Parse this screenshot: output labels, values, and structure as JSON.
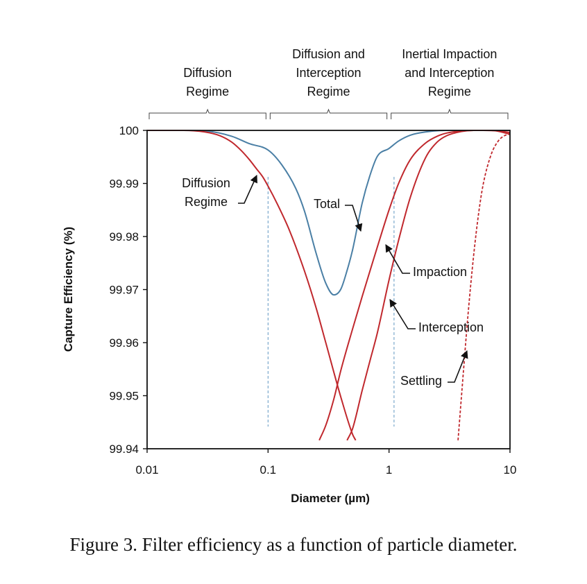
{
  "chart_data": {
    "type": "line",
    "xscale": "log",
    "xlim": [
      0.01,
      10
    ],
    "ylim": [
      99.94,
      100
    ],
    "xlabel": "Diameter (µm)",
    "ylabel": "Capture Efficiency (%)",
    "xticks": [
      "0.01",
      "0.1",
      "1",
      "10"
    ],
    "yticks": [
      "100",
      "99.99",
      "99.98",
      "99.97",
      "99.96",
      "99.95",
      "99.94"
    ],
    "grid": false,
    "regimes": [
      {
        "lines": [
          "Diffusion",
          "Regime"
        ],
        "range": [
          0.01,
          0.1
        ]
      },
      {
        "lines": [
          "Diffusion and",
          "Interception",
          "Regime"
        ],
        "range": [
          0.1,
          1
        ]
      },
      {
        "lines": [
          "Inertial Impaction",
          "and Interception",
          "Regime"
        ],
        "range": [
          1,
          10
        ]
      }
    ],
    "reference_lines": [
      0.1,
      1.1
    ],
    "series": [
      {
        "name": "Total",
        "color": "#4a7fa5",
        "style": "solid",
        "x": [
          0.01,
          0.02,
          0.03,
          0.05,
          0.07,
          0.1,
          0.13,
          0.17,
          0.2,
          0.25,
          0.3,
          0.35,
          0.4,
          0.45,
          0.5,
          0.6,
          0.7,
          0.8,
          1.0,
          1.2,
          1.5,
          2,
          3,
          5,
          10
        ],
        "y": [
          100,
          100,
          99.9999,
          99.9989,
          99.9975,
          99.9963,
          99.9935,
          99.989,
          99.9848,
          99.9768,
          99.9712,
          99.969,
          99.9701,
          99.9736,
          99.9775,
          99.9863,
          99.9917,
          99.9951,
          99.9966,
          99.998,
          99.9991,
          99.9997,
          100,
          100,
          100
        ]
      },
      {
        "name": "Diffusion",
        "color": "#c0282d",
        "style": "solid",
        "x": [
          0.01,
          0.02,
          0.03,
          0.04,
          0.05,
          0.06,
          0.07,
          0.08,
          0.09,
          0.1,
          0.12,
          0.15,
          0.2,
          0.25,
          0.3,
          0.4,
          0.5,
          0.53
        ],
        "y": [
          100,
          100,
          99.9997,
          99.999,
          99.9978,
          99.9962,
          99.9945,
          99.9928,
          99.9913,
          99.9895,
          99.986,
          99.9812,
          99.9735,
          99.9665,
          99.96,
          99.9497,
          99.9427,
          99.9416
        ]
      },
      {
        "name": "Impaction",
        "color": "#c0282d",
        "style": "solid",
        "x": [
          0.265,
          0.3,
          0.35,
          0.4,
          0.5,
          0.6,
          0.7,
          0.8,
          1.0,
          1.2,
          1.5,
          2,
          2.5,
          3,
          4,
          5,
          6,
          8,
          10
        ],
        "y": [
          99.9416,
          99.9444,
          99.9494,
          99.9548,
          99.9626,
          99.9687,
          99.9737,
          99.978,
          99.985,
          99.99,
          99.9945,
          99.9976,
          99.9989,
          99.9995,
          99.9999,
          100,
          100,
          99.9999,
          99.9996
        ]
      },
      {
        "name": "Interception",
        "color": "#c0282d",
        "style": "solid",
        "x": [
          0.45,
          0.5,
          0.6,
          0.7,
          0.8,
          1.0,
          1.2,
          1.5,
          2,
          2.5,
          3,
          4,
          5,
          6,
          7,
          10
        ],
        "y": [
          99.9416,
          99.9438,
          99.951,
          99.9568,
          99.9618,
          99.9718,
          99.9793,
          99.9874,
          99.9948,
          99.9978,
          99.999,
          99.9998,
          100,
          100,
          100,
          99.9993
        ]
      },
      {
        "name": "Settling",
        "color": "#c0282d",
        "style": "dashed",
        "x": [
          3.72,
          4.0,
          4.5,
          5.0,
          5.5,
          6.0,
          7.0,
          8.0,
          9.0,
          10.0
        ],
        "y": [
          99.9416,
          99.9508,
          99.9653,
          99.9763,
          99.9843,
          99.9898,
          99.9955,
          99.998,
          99.999,
          99.9993
        ]
      }
    ],
    "annotations": [
      {
        "lines": [
          "Diffusion",
          "Regime"
        ],
        "series": "Diffusion"
      },
      {
        "lines": [
          "Total"
        ],
        "series": "Total"
      },
      {
        "lines": [
          "Impaction"
        ],
        "series": "Impaction"
      },
      {
        "lines": [
          "Interception"
        ],
        "series": "Interception"
      },
      {
        "lines": [
          "Settling"
        ],
        "series": "Settling"
      }
    ]
  },
  "caption": "Figure 3.  Filter efficiency as a function of particle diameter."
}
